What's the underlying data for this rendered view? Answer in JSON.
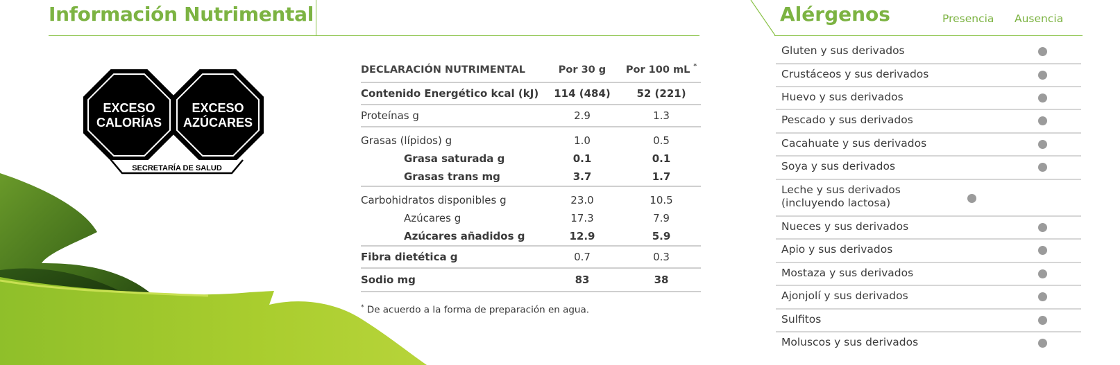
{
  "nutrition": {
    "title": "Información Nutrimental",
    "warnings": {
      "seal1_line1": "EXCESO",
      "seal1_line2": "CALORÍAS",
      "seal2_line1": "EXCESO",
      "seal2_line2": "AZÚCARES",
      "authority": "SECRETARÍA DE SALUD"
    },
    "table": {
      "header": {
        "label": "DECLARACIÓN NUTRIMENTAL",
        "col1": "Por 30 g",
        "col2": "Por 100 mL",
        "col2_mark": "*"
      },
      "rows": [
        {
          "label": "Contenido Energético kcal (kJ)",
          "v1": "114 (484)",
          "v2": "52 (221)"
        },
        {
          "label": "Proteínas g",
          "v1": "2.9",
          "v2": "1.3"
        },
        {
          "label": "Grasas (lípidos) g",
          "v1": "1.0",
          "v2": "0.5"
        },
        {
          "label": "Grasa saturada g",
          "v1": "0.1",
          "v2": "0.1"
        },
        {
          "label": "Grasas trans mg",
          "v1": "3.7",
          "v2": "1.7"
        },
        {
          "label": "Carbohidratos disponibles g",
          "v1": "23.0",
          "v2": "10.5"
        },
        {
          "label": "Azúcares g",
          "v1": "17.3",
          "v2": "7.9"
        },
        {
          "label": "Azúcares añadidos g",
          "v1": "12.9",
          "v2": "5.9"
        },
        {
          "label": "Fibra dietética g",
          "v1": "0.7",
          "v2": "0.3"
        },
        {
          "label": "Sodio mg",
          "v1": "83",
          "v2": "38"
        }
      ]
    },
    "footnote_mark": "*",
    "footnote": "De acuerdo a la forma de preparación en agua."
  },
  "allergens": {
    "title": "Alérgenos",
    "col_presence": "Presencia",
    "col_absence": "Ausencia",
    "items": [
      {
        "label": "Gluten y sus derivados",
        "status": "ausencia"
      },
      {
        "label": "Crustáceos y sus derivados",
        "status": "ausencia"
      },
      {
        "label": "Huevo y sus derivados",
        "status": "ausencia"
      },
      {
        "label": "Pescado y sus derivados",
        "status": "ausencia"
      },
      {
        "label": "Cacahuate y sus derivados",
        "status": "ausencia"
      },
      {
        "label": "Soya y sus derivados",
        "status": "ausencia"
      },
      {
        "label": "Leche y sus derivados",
        "label2": "(incluyendo lactosa)",
        "status": "presencia"
      },
      {
        "label": "Nueces y sus derivados",
        "status": "ausencia"
      },
      {
        "label": "Apio y sus derivados",
        "status": "ausencia"
      },
      {
        "label": "Mostaza y sus derivados",
        "status": "ausencia"
      },
      {
        "label": "Ajonjolí y sus derivados",
        "status": "ausencia"
      },
      {
        "label": "Sulfitos",
        "status": "ausencia"
      },
      {
        "label": "Moluscos y sus derivados",
        "status": "ausencia"
      }
    ]
  },
  "colors": {
    "accent_green": "#7cb342",
    "seal_black": "#000000",
    "dot_gray": "#9b9b9b",
    "rule_gray": "#cfcfcf"
  }
}
